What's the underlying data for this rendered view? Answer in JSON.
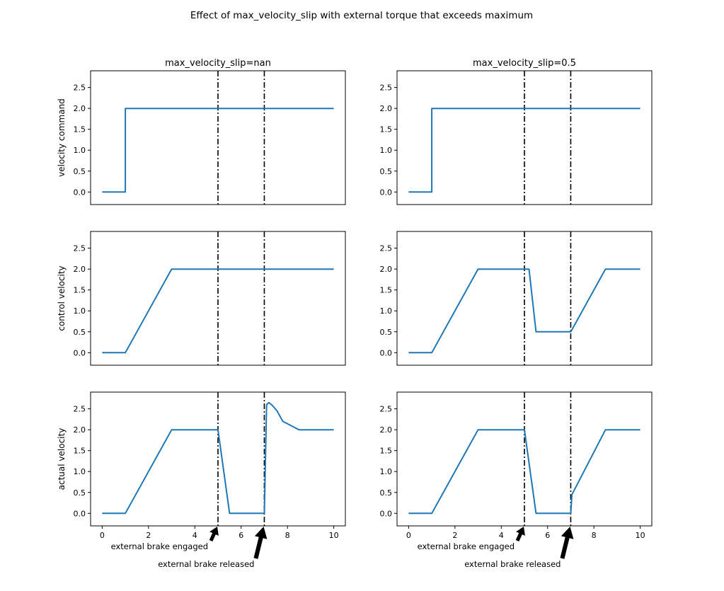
{
  "figure_title": "Effect of max_velocity_slip with external torque that exceeds maximum",
  "chart_data": [
    {
      "type": "line",
      "title": "max_velocity_slip=nan",
      "xlabel": "",
      "ylabel": "velocity command",
      "xlim": [
        -0.5,
        10.5
      ],
      "ylim": [
        -0.3,
        2.9
      ],
      "series": [
        {
          "x": [
            0,
            1,
            1,
            10
          ],
          "y": [
            0,
            0,
            2,
            2
          ]
        }
      ],
      "vlines": [
        5,
        7
      ]
    },
    {
      "type": "line",
      "title": "max_velocity_slip=0.5",
      "xlabel": "",
      "ylabel": "",
      "xlim": [
        -0.5,
        10.5
      ],
      "ylim": [
        -0.3,
        2.9
      ],
      "series": [
        {
          "x": [
            0,
            1,
            1,
            10
          ],
          "y": [
            0,
            0,
            2,
            2
          ]
        }
      ],
      "vlines": [
        5,
        7
      ]
    },
    {
      "type": "line",
      "title": "",
      "xlabel": "",
      "ylabel": "control velocity",
      "xlim": [
        -0.5,
        10.5
      ],
      "ylim": [
        -0.3,
        2.9
      ],
      "series": [
        {
          "x": [
            0,
            1,
            3,
            10
          ],
          "y": [
            0,
            0,
            2,
            2
          ]
        }
      ],
      "vlines": [
        5,
        7
      ]
    },
    {
      "type": "line",
      "title": "",
      "xlabel": "",
      "ylabel": "",
      "xlim": [
        -0.5,
        10.5
      ],
      "ylim": [
        -0.3,
        2.9
      ],
      "series": [
        {
          "x": [
            0,
            1,
            3,
            5.2,
            5.5,
            7,
            8.5,
            10
          ],
          "y": [
            0,
            0,
            2,
            2,
            0.5,
            0.5,
            2,
            2
          ]
        }
      ],
      "vlines": [
        5,
        7
      ]
    },
    {
      "type": "line",
      "title": "",
      "xlabel": "",
      "ylabel": "actual velocity",
      "xlim": [
        -0.5,
        10.5
      ],
      "ylim": [
        -0.3,
        2.9
      ],
      "series": [
        {
          "x": [
            0,
            1,
            3,
            5,
            5.5,
            7,
            7.1,
            7.2,
            7.35,
            7.55,
            7.8,
            8.5,
            10
          ],
          "y": [
            0,
            0,
            2,
            2,
            0,
            0,
            2.6,
            2.65,
            2.58,
            2.45,
            2.2,
            2,
            2
          ]
        }
      ],
      "vlines": [
        5,
        7
      ]
    },
    {
      "type": "line",
      "title": "",
      "xlabel": "",
      "ylabel": "",
      "xlim": [
        -0.5,
        10.5
      ],
      "ylim": [
        -0.3,
        2.9
      ],
      "series": [
        {
          "x": [
            0,
            1,
            3,
            5,
            5.5,
            7,
            7.05,
            7.1,
            8.5,
            10
          ],
          "y": [
            0,
            0,
            2,
            2,
            0,
            0,
            0.45,
            0.5,
            2,
            2
          ]
        }
      ],
      "vlines": [
        5,
        7
      ]
    }
  ],
  "yticks": [
    "0.0",
    "0.5",
    "1.0",
    "1.5",
    "2.0",
    "2.5"
  ],
  "xticks": [
    "0",
    "2",
    "4",
    "6",
    "8",
    "10"
  ],
  "annotations": {
    "engaged": "external brake engaged",
    "released": "external brake released"
  },
  "colors": {
    "line": "#1f77b4",
    "vline": "#000000",
    "axes": "#000000"
  }
}
